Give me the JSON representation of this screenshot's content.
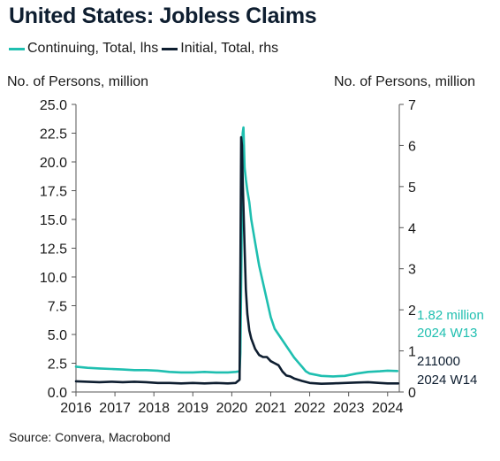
{
  "title": "United States: Jobless Claims",
  "legend": [
    {
      "label": "Continuing, Total, lhs",
      "color": "#1fbfb0"
    },
    {
      "label": "Initial, Total, rhs",
      "color": "#0e1e30"
    }
  ],
  "left_axis_title": "No. of Persons, million",
  "right_axis_title": "No. of Persons, million",
  "source": "Source: Convera, Macrobond",
  "annotations": {
    "continuing_value": "1.82 million",
    "continuing_period": "2024 W13",
    "initial_value": "211000",
    "initial_period": "2024 W14"
  },
  "chart_data": {
    "type": "line",
    "title": "United States: Jobless Claims",
    "x_ticks": [
      "2016",
      "2017",
      "2018",
      "2019",
      "2020",
      "2021",
      "2022",
      "2023",
      "2024"
    ],
    "x_range": [
      2016.0,
      2024.3
    ],
    "left_axis": {
      "label": "No. of Persons, million",
      "ticks": [
        "0.0",
        "2.5",
        "5.0",
        "7.5",
        "10.0",
        "12.5",
        "15.0",
        "17.5",
        "20.0",
        "22.5",
        "25.0"
      ],
      "range": [
        0,
        25
      ]
    },
    "right_axis": {
      "label": "No. of Persons, million",
      "ticks": [
        "0",
        "1",
        "2",
        "3",
        "4",
        "5",
        "6",
        "7"
      ],
      "range": [
        0,
        7
      ]
    },
    "grid": false,
    "legend_position": "top-left",
    "series": [
      {
        "name": "Continuing, Total, lhs",
        "axis": "left",
        "color": "#1fbfb0",
        "x": [
          2016.0,
          2016.3,
          2016.6,
          2016.9,
          2017.2,
          2017.5,
          2017.8,
          2018.1,
          2018.4,
          2018.7,
          2019.0,
          2019.3,
          2019.6,
          2019.9,
          2020.1,
          2020.2,
          2020.22,
          2020.25,
          2020.28,
          2020.3,
          2020.33,
          2020.36,
          2020.4,
          2020.45,
          2020.5,
          2020.6,
          2020.7,
          2020.8,
          2020.9,
          2021.0,
          2021.1,
          2021.2,
          2021.3,
          2021.4,
          2021.5,
          2021.6,
          2021.7,
          2021.8,
          2021.9,
          2022.0,
          2022.3,
          2022.6,
          2022.9,
          2023.2,
          2023.5,
          2023.8,
          2024.0,
          2024.25
        ],
        "values": [
          2.2,
          2.1,
          2.05,
          2.0,
          1.95,
          1.9,
          1.9,
          1.85,
          1.75,
          1.7,
          1.7,
          1.75,
          1.7,
          1.7,
          1.75,
          1.8,
          3.4,
          12.0,
          22.5,
          23.0,
          19.5,
          18.5,
          17.5,
          16.5,
          15.0,
          13.0,
          11.0,
          9.5,
          8.0,
          6.5,
          5.5,
          5.0,
          4.5,
          4.0,
          3.5,
          3.0,
          2.6,
          2.2,
          1.8,
          1.6,
          1.4,
          1.35,
          1.4,
          1.6,
          1.75,
          1.8,
          1.85,
          1.82
        ]
      },
      {
        "name": "Initial, Total, rhs",
        "axis": "right",
        "color": "#0e1e30",
        "x": [
          2016.0,
          2016.3,
          2016.6,
          2016.9,
          2017.2,
          2017.5,
          2017.8,
          2018.1,
          2018.4,
          2018.7,
          2019.0,
          2019.3,
          2019.6,
          2019.9,
          2020.1,
          2020.2,
          2020.22,
          2020.24,
          2020.26,
          2020.28,
          2020.3,
          2020.33,
          2020.36,
          2020.4,
          2020.45,
          2020.5,
          2020.6,
          2020.7,
          2020.8,
          2020.9,
          2021.0,
          2021.1,
          2021.2,
          2021.3,
          2021.4,
          2021.5,
          2021.6,
          2021.7,
          2021.8,
          2022.0,
          2022.3,
          2022.6,
          2022.9,
          2023.2,
          2023.5,
          2023.8,
          2024.0,
          2024.27
        ],
        "values": [
          0.26,
          0.25,
          0.24,
          0.25,
          0.24,
          0.25,
          0.24,
          0.22,
          0.22,
          0.21,
          0.22,
          0.21,
          0.22,
          0.21,
          0.22,
          0.3,
          2.9,
          6.2,
          6.0,
          5.2,
          4.5,
          3.5,
          2.5,
          1.9,
          1.5,
          1.3,
          1.05,
          0.9,
          0.85,
          0.85,
          0.75,
          0.7,
          0.65,
          0.5,
          0.4,
          0.38,
          0.33,
          0.3,
          0.27,
          0.22,
          0.2,
          0.21,
          0.22,
          0.23,
          0.24,
          0.22,
          0.21,
          0.21
        ]
      }
    ]
  }
}
